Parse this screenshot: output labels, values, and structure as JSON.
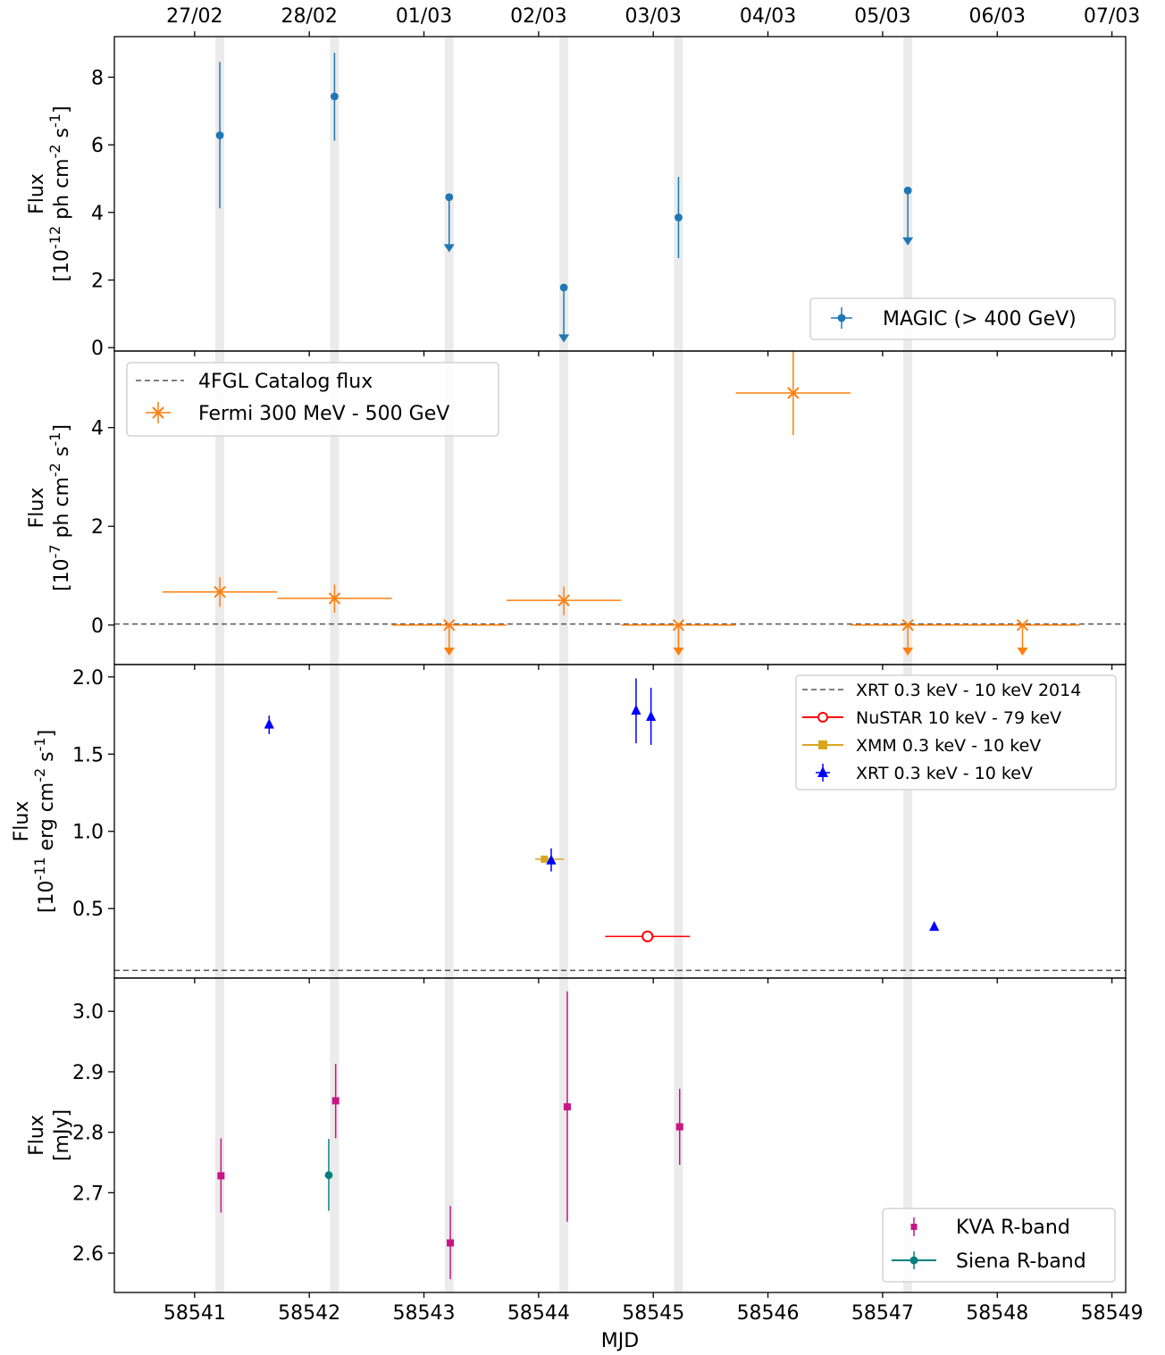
{
  "chart_data": [
    {
      "type": "scatter",
      "panel": "magic",
      "ylabel": [
        "Flux",
        "[10^{-12} ph cm^{-2} s^{-1}]"
      ],
      "ylim": [
        -0.1,
        9.2
      ],
      "yticks": [
        0,
        2,
        4,
        6,
        8
      ],
      "legend": {
        "placement": "lower-right",
        "entries": [
          "MAGIC (> 400 GeV)"
        ]
      },
      "series": [
        {
          "name": "MAGIC (> 400 GeV)",
          "color": "#1f77b4",
          "marker": "circle",
          "points": [
            {
              "x": 58541.22,
              "y": 6.28,
              "ylo": 4.12,
              "yhi": 8.45
            },
            {
              "x": 58542.22,
              "y": 7.43,
              "ylo": 6.12,
              "yhi": 8.72
            }
          ],
          "upper_limits": [
            {
              "x": 58543.22,
              "y": 4.45,
              "arrow_to": 2.85
            },
            {
              "x": 58544.22,
              "y": 1.78,
              "arrow_to": 0.18
            },
            {
              "x": 58547.22,
              "y": 4.65,
              "arrow_to": 3.05
            }
          ],
          "extra_points": [
            {
              "x": 58545.22,
              "y": 3.85,
              "ylo": 2.65,
              "yhi": 5.05
            }
          ]
        }
      ]
    },
    {
      "type": "scatter",
      "panel": "fermi",
      "ylabel": [
        "Flux",
        "[10^{-7} ph cm^{-2} s^{-1}]"
      ],
      "ylim": [
        -0.8,
        5.55
      ],
      "yticks": [
        0,
        2,
        4
      ],
      "reference_line": {
        "name": "4FGL Catalog flux",
        "y": 0.02,
        "color": "#555555",
        "style": "dashed"
      },
      "legend": {
        "placement": "upper-left",
        "entries": [
          "4FGL Catalog flux",
          "Fermi 300 MeV - 500 GeV"
        ]
      },
      "series": [
        {
          "name": "Fermi 300 MeV - 500 GeV",
          "color": "#ff7f0e",
          "marker": "x",
          "points": [
            {
              "x": 58541.22,
              "y": 0.67,
              "xlo": 58540.72,
              "xhi": 58541.72,
              "ylo": 0.37,
              "yhi": 0.97
            },
            {
              "x": 58542.22,
              "y": 0.54,
              "xlo": 58541.72,
              "xhi": 58542.72,
              "ylo": 0.25,
              "yhi": 0.82
            },
            {
              "x": 58544.22,
              "y": 0.5,
              "xlo": 58543.72,
              "xhi": 58544.72,
              "ylo": 0.2,
              "yhi": 0.78
            },
            {
              "x": 58546.22,
              "y": 4.7,
              "xlo": 58545.72,
              "xhi": 58546.72,
              "ylo": 3.85,
              "yhi": 5.55
            }
          ],
          "upper_limits": [
            {
              "x": 58543.22,
              "y": 0.0,
              "xlo": 58542.72,
              "xhi": 58543.72,
              "arrow_to": -0.6
            },
            {
              "x": 58545.22,
              "y": 0.0,
              "xlo": 58544.72,
              "xhi": 58545.72,
              "arrow_to": -0.6
            },
            {
              "x": 58547.22,
              "y": 0.0,
              "xlo": 58546.72,
              "xhi": 58547.72,
              "arrow_to": -0.6
            },
            {
              "x": 58548.22,
              "y": 0.0,
              "xlo": 58547.72,
              "xhi": 58548.72,
              "arrow_to": -0.6
            }
          ]
        }
      ]
    },
    {
      "type": "scatter",
      "panel": "xray",
      "ylabel": [
        "Flux",
        "[10^{-11} erg cm^{-2} s^{-1}]"
      ],
      "ylim": [
        0.05,
        2.08
      ],
      "yticks": [
        0.5,
        1.0,
        1.5,
        2.0
      ],
      "ytick_labels": [
        "0.5",
        "1.0",
        "1.5",
        "2.0"
      ],
      "reference_line": {
        "name": "XRT 0.3 keV - 10 keV 2014",
        "y": 0.1,
        "color": "#555555",
        "style": "dashed"
      },
      "legend": {
        "placement": "upper-right",
        "entries": [
          "XRT 0.3 keV - 10 keV 2014",
          "NuSTAR 10 keV - 79 keV",
          "XMM 0.3 keV - 10 keV",
          "XRT 0.3 keV - 10 keV"
        ]
      },
      "series": [
        {
          "name": "NuSTAR 10 keV - 79 keV",
          "color": "#ff0000",
          "marker": "open-circle",
          "points": [
            {
              "x": 58544.95,
              "y": 0.32,
              "xlo": 58544.58,
              "xhi": 58545.32
            }
          ]
        },
        {
          "name": "XMM 0.3 keV - 10 keV",
          "color": "#daa520",
          "marker": "square",
          "points": [
            {
              "x": 58544.05,
              "y": 0.82,
              "xlo": 58543.97,
              "xhi": 58544.22
            }
          ]
        },
        {
          "name": "XRT 0.3 keV - 10 keV",
          "color": "#0000ff",
          "marker": "triangle",
          "points": [
            {
              "x": 58541.65,
              "y": 1.69,
              "ylo": 1.63,
              "yhi": 1.75
            },
            {
              "x": 58544.11,
              "y": 0.81,
              "ylo": 0.74,
              "yhi": 0.89
            },
            {
              "x": 58544.85,
              "y": 1.78,
              "ylo": 1.57,
              "yhi": 1.99
            },
            {
              "x": 58544.98,
              "y": 1.74,
              "ylo": 1.56,
              "yhi": 1.93
            },
            {
              "x": 58547.45,
              "y": 0.38,
              "ylo": 0.37,
              "yhi": 0.39
            }
          ]
        }
      ]
    },
    {
      "type": "scatter",
      "panel": "optical",
      "ylabel": [
        "Flux",
        "[mJy]"
      ],
      "ylim": [
        2.535,
        3.055
      ],
      "yticks": [
        2.6,
        2.7,
        2.8,
        2.9,
        3.0
      ],
      "ytick_labels": [
        "2.6",
        "2.7",
        "2.8",
        "2.9",
        "3.0"
      ],
      "legend": {
        "placement": "lower-right",
        "entries": [
          "KVA R-band",
          "Siena R-band"
        ]
      },
      "series": [
        {
          "name": "KVA R-band",
          "color": "#c71585",
          "marker": "square",
          "points": [
            {
              "x": 58541.23,
              "y": 2.728,
              "ylo": 2.667,
              "yhi": 2.79
            },
            {
              "x": 58542.23,
              "y": 2.852,
              "ylo": 2.79,
              "yhi": 2.913
            },
            {
              "x": 58543.23,
              "y": 2.617,
              "ylo": 2.557,
              "yhi": 2.678
            },
            {
              "x": 58544.25,
              "y": 2.842,
              "ylo": 2.652,
              "yhi": 3.033
            },
            {
              "x": 58545.23,
              "y": 2.809,
              "ylo": 2.746,
              "yhi": 2.872
            }
          ]
        },
        {
          "name": "Siena R-band",
          "color": "#008080",
          "marker": "circle",
          "points": [
            {
              "x": 58542.17,
              "y": 2.729,
              "ylo": 2.67,
              "yhi": 2.789
            }
          ]
        }
      ]
    }
  ],
  "shared_axes": {
    "xlabel": "MJD",
    "xlim": [
      58540.3,
      58549.12
    ],
    "xticks": [
      58541,
      58542,
      58543,
      58544,
      58545,
      58546,
      58547,
      58548,
      58549
    ],
    "top_tick_labels": [
      "27/02",
      "28/02",
      "01/03",
      "02/03",
      "03/03",
      "04/03",
      "05/03",
      "06/03",
      "07/03"
    ],
    "top_tick_positions": [
      58541.0,
      58542.0,
      58543.0,
      58544.0,
      58545.0,
      58546.0,
      58547.0,
      58548.0,
      58549.0
    ],
    "shaded_bands": [
      58541.22,
      58542.22,
      58543.22,
      58544.22,
      58545.22,
      58547.22
    ],
    "band_color": "#ebebeb"
  }
}
